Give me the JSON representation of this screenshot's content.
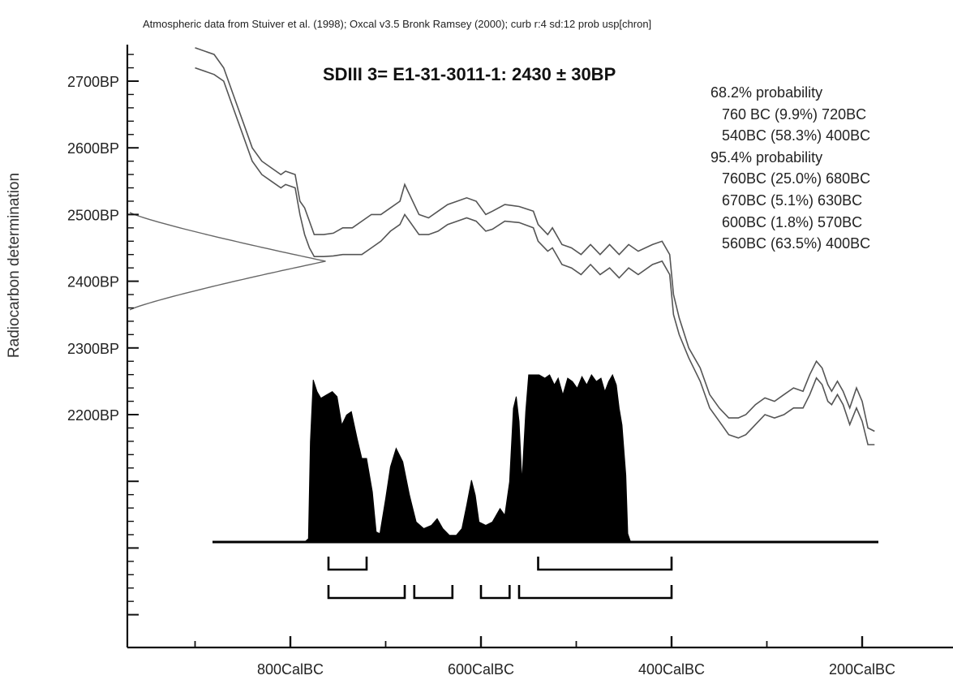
{
  "chart_data": {
    "type": "area",
    "header": "Atmospheric data from Stuiver et al. (1998); Oxcal v3.5 Bronk Ramsey (2000); curb r:4 sd:12 prob usp[chron]",
    "title": "SDIII 3= E1-31-3011-1: 2430 ± 30BP",
    "ylabel": "Radiocarbon determination",
    "xlabel": "",
    "x_ticks": [
      {
        "value": -800,
        "label": "800CalBC"
      },
      {
        "value": -600,
        "label": "600CalBC"
      },
      {
        "value": -400,
        "label": "400CalBC"
      },
      {
        "value": -200,
        "label": "200CalBC"
      }
    ],
    "x_minor_ticks": [
      -900,
      -700,
      -500,
      -300
    ],
    "y_ticks": [
      {
        "value": 2700,
        "label": "2700BP"
      },
      {
        "value": 2600,
        "label": "2600BP"
      },
      {
        "value": 2500,
        "label": "2500BP"
      },
      {
        "value": 2400,
        "label": "2400BP"
      },
      {
        "value": 2300,
        "label": "2300BP"
      },
      {
        "value": 2200,
        "label": "2200BP"
      }
    ],
    "xlim": [
      -1000,
      -100
    ],
    "ylim": [
      1900,
      2760
    ],
    "measurement": {
      "bp": 2430,
      "error": 30
    },
    "calibration_curve": {
      "upper": [
        [
          -900,
          2750
        ],
        [
          -880,
          2740
        ],
        [
          -870,
          2720
        ],
        [
          -860,
          2680
        ],
        [
          -850,
          2640
        ],
        [
          -840,
          2600
        ],
        [
          -830,
          2580
        ],
        [
          -820,
          2570
        ],
        [
          -810,
          2560
        ],
        [
          -805,
          2565
        ],
        [
          -795,
          2560
        ],
        [
          -790,
          2520
        ],
        [
          -785,
          2510
        ],
        [
          -780,
          2490
        ],
        [
          -775,
          2470
        ],
        [
          -765,
          2470
        ],
        [
          -755,
          2472
        ],
        [
          -745,
          2480
        ],
        [
          -735,
          2480
        ],
        [
          -725,
          2490
        ],
        [
          -715,
          2500
        ],
        [
          -705,
          2500
        ],
        [
          -695,
          2510
        ],
        [
          -685,
          2520
        ],
        [
          -680,
          2545
        ],
        [
          -675,
          2530
        ],
        [
          -665,
          2500
        ],
        [
          -655,
          2495
        ],
        [
          -645,
          2505
        ],
        [
          -635,
          2515
        ],
        [
          -625,
          2520
        ],
        [
          -615,
          2525
        ],
        [
          -605,
          2520
        ],
        [
          -595,
          2500
        ],
        [
          -588,
          2505
        ],
        [
          -575,
          2515
        ],
        [
          -560,
          2512
        ],
        [
          -545,
          2505
        ],
        [
          -540,
          2485
        ],
        [
          -530,
          2470
        ],
        [
          -525,
          2480
        ],
        [
          -515,
          2455
        ],
        [
          -505,
          2450
        ],
        [
          -495,
          2440
        ],
        [
          -485,
          2455
        ],
        [
          -475,
          2440
        ],
        [
          -465,
          2455
        ],
        [
          -455,
          2440
        ],
        [
          -445,
          2455
        ],
        [
          -435,
          2445
        ],
        [
          -420,
          2455
        ],
        [
          -410,
          2460
        ],
        [
          -402,
          2440
        ],
        [
          -398,
          2380
        ],
        [
          -392,
          2345
        ],
        [
          -382,
          2300
        ],
        [
          -370,
          2270
        ],
        [
          -360,
          2230
        ],
        [
          -350,
          2210
        ],
        [
          -340,
          2195
        ],
        [
          -330,
          2195
        ],
        [
          -322,
          2200
        ],
        [
          -312,
          2215
        ],
        [
          -302,
          2225
        ],
        [
          -292,
          2220
        ],
        [
          -282,
          2230
        ],
        [
          -272,
          2240
        ],
        [
          -262,
          2235
        ],
        [
          -255,
          2260
        ],
        [
          -248,
          2280
        ],
        [
          -242,
          2270
        ],
        [
          -236,
          2245
        ],
        [
          -232,
          2235
        ],
        [
          -226,
          2250
        ],
        [
          -220,
          2235
        ],
        [
          -213,
          2210
        ],
        [
          -206,
          2240
        ],
        [
          -200,
          2220
        ],
        [
          -194,
          2180
        ],
        [
          -187,
          2175
        ]
      ],
      "lower": [
        [
          -900,
          2720
        ],
        [
          -880,
          2710
        ],
        [
          -870,
          2700
        ],
        [
          -860,
          2660
        ],
        [
          -850,
          2620
        ],
        [
          -840,
          2580
        ],
        [
          -830,
          2560
        ],
        [
          -820,
          2550
        ],
        [
          -810,
          2540
        ],
        [
          -805,
          2545
        ],
        [
          -795,
          2540
        ],
        [
          -790,
          2500
        ],
        [
          -785,
          2470
        ],
        [
          -780,
          2450
        ],
        [
          -775,
          2437
        ],
        [
          -765,
          2437
        ],
        [
          -755,
          2438
        ],
        [
          -745,
          2440
        ],
        [
          -735,
          2440
        ],
        [
          -725,
          2440
        ],
        [
          -715,
          2450
        ],
        [
          -705,
          2460
        ],
        [
          -695,
          2475
        ],
        [
          -685,
          2485
        ],
        [
          -680,
          2500
        ],
        [
          -675,
          2490
        ],
        [
          -665,
          2470
        ],
        [
          -655,
          2470
        ],
        [
          -645,
          2475
        ],
        [
          -635,
          2485
        ],
        [
          -625,
          2490
        ],
        [
          -615,
          2495
        ],
        [
          -605,
          2490
        ],
        [
          -595,
          2475
        ],
        [
          -588,
          2478
        ],
        [
          -575,
          2490
        ],
        [
          -560,
          2488
        ],
        [
          -545,
          2480
        ],
        [
          -540,
          2460
        ],
        [
          -530,
          2445
        ],
        [
          -525,
          2450
        ],
        [
          -515,
          2425
        ],
        [
          -505,
          2420
        ],
        [
          -495,
          2410
        ],
        [
          -485,
          2425
        ],
        [
          -475,
          2410
        ],
        [
          -465,
          2420
        ],
        [
          -455,
          2405
        ],
        [
          -445,
          2420
        ],
        [
          -435,
          2410
        ],
        [
          -420,
          2425
        ],
        [
          -410,
          2430
        ],
        [
          -402,
          2410
        ],
        [
          -398,
          2350
        ],
        [
          -392,
          2320
        ],
        [
          -382,
          2285
        ],
        [
          -370,
          2250
        ],
        [
          -360,
          2210
        ],
        [
          -350,
          2190
        ],
        [
          -340,
          2170
        ],
        [
          -330,
          2165
        ],
        [
          -322,
          2170
        ],
        [
          -312,
          2185
        ],
        [
          -302,
          2200
        ],
        [
          -292,
          2195
        ],
        [
          -282,
          2200
        ],
        [
          -272,
          2210
        ],
        [
          -262,
          2210
        ],
        [
          -255,
          2230
        ],
        [
          -248,
          2255
        ],
        [
          -242,
          2245
        ],
        [
          -236,
          2220
        ],
        [
          -232,
          2215
        ],
        [
          -226,
          2230
        ],
        [
          -220,
          2215
        ],
        [
          -213,
          2185
        ],
        [
          -206,
          2210
        ],
        [
          -200,
          2190
        ],
        [
          -194,
          2155
        ],
        [
          -187,
          2155
        ]
      ]
    },
    "measured_distribution_note": "normal distribution centred 2430BP, ±30",
    "calibrated_probability": [
      [
        -785,
        0
      ],
      [
        -781,
        0.02
      ],
      [
        -779,
        0.6
      ],
      [
        -776,
        0.97
      ],
      [
        -772,
        0.9
      ],
      [
        -768,
        0.86
      ],
      [
        -762,
        0.88
      ],
      [
        -756,
        0.9
      ],
      [
        -751,
        0.87
      ],
      [
        -746,
        0.7
      ],
      [
        -741,
        0.76
      ],
      [
        -736,
        0.78
      ],
      [
        -730,
        0.62
      ],
      [
        -725,
        0.5
      ],
      [
        -720,
        0.5
      ],
      [
        -714,
        0.3
      ],
      [
        -710,
        0.06
      ],
      [
        -706,
        0.05
      ],
      [
        -700,
        0.26
      ],
      [
        -695,
        0.45
      ],
      [
        -689,
        0.56
      ],
      [
        -682,
        0.48
      ],
      [
        -675,
        0.28
      ],
      [
        -668,
        0.12
      ],
      [
        -660,
        0.08
      ],
      [
        -652,
        0.1
      ],
      [
        -646,
        0.14
      ],
      [
        -640,
        0.08
      ],
      [
        -633,
        0.04
      ],
      [
        -626,
        0.04
      ],
      [
        -620,
        0.08
      ],
      [
        -615,
        0.22
      ],
      [
        -610,
        0.37
      ],
      [
        -606,
        0.28
      ],
      [
        -602,
        0.12
      ],
      [
        -595,
        0.1
      ],
      [
        -588,
        0.12
      ],
      [
        -580,
        0.2
      ],
      [
        -575,
        0.16
      ],
      [
        -570,
        0.36
      ],
      [
        -566,
        0.8
      ],
      [
        -563,
        0.87
      ],
      [
        -560,
        0.72
      ],
      [
        -557,
        0.36
      ],
      [
        -553,
        0.78
      ],
      [
        -550,
        1.0
      ],
      [
        -545,
        1.0
      ],
      [
        -539,
        1.0
      ],
      [
        -533,
        0.98
      ],
      [
        -528,
        1.0
      ],
      [
        -523,
        0.94
      ],
      [
        -519,
        0.98
      ],
      [
        -514,
        0.88
      ],
      [
        -509,
        0.98
      ],
      [
        -504,
        0.96
      ],
      [
        -499,
        0.92
      ],
      [
        -494,
        0.99
      ],
      [
        -489,
        0.94
      ],
      [
        -484,
        1.0
      ],
      [
        -479,
        0.96
      ],
      [
        -474,
        0.98
      ],
      [
        -470,
        0.9
      ],
      [
        -466,
        0.96
      ],
      [
        -462,
        1.0
      ],
      [
        -458,
        0.94
      ],
      [
        -455,
        0.8
      ],
      [
        -452,
        0.7
      ],
      [
        -448,
        0.4
      ],
      [
        -446,
        0.05
      ],
      [
        -443,
        0
      ]
    ],
    "ranges_68_2": [
      [
        -760,
        -720
      ],
      [
        -540,
        -400
      ]
    ],
    "ranges_95_4": [
      [
        -760,
        -680
      ],
      [
        -670,
        -630
      ],
      [
        -600,
        -570
      ],
      [
        -560,
        -400
      ]
    ],
    "annotations": [
      {
        "label": "68.2% probability",
        "type": "header"
      },
      {
        "label": "760 BC (9.9%) 720BC",
        "type": "range"
      },
      {
        "label": "540BC (58.3%) 400BC",
        "type": "range"
      },
      {
        "label": "95.4% probability",
        "type": "header"
      },
      {
        "label": "760BC (25.0%) 680BC",
        "type": "range"
      },
      {
        "label": "670BC (5.1%) 630BC",
        "type": "range"
      },
      {
        "label": "600BC (1.8%) 570BC",
        "type": "range"
      },
      {
        "label": "560BC (63.5%) 400BC",
        "type": "range"
      }
    ],
    "colors": {
      "curve": "#555555",
      "distribution": "#000000",
      "axis": "#111111"
    }
  }
}
